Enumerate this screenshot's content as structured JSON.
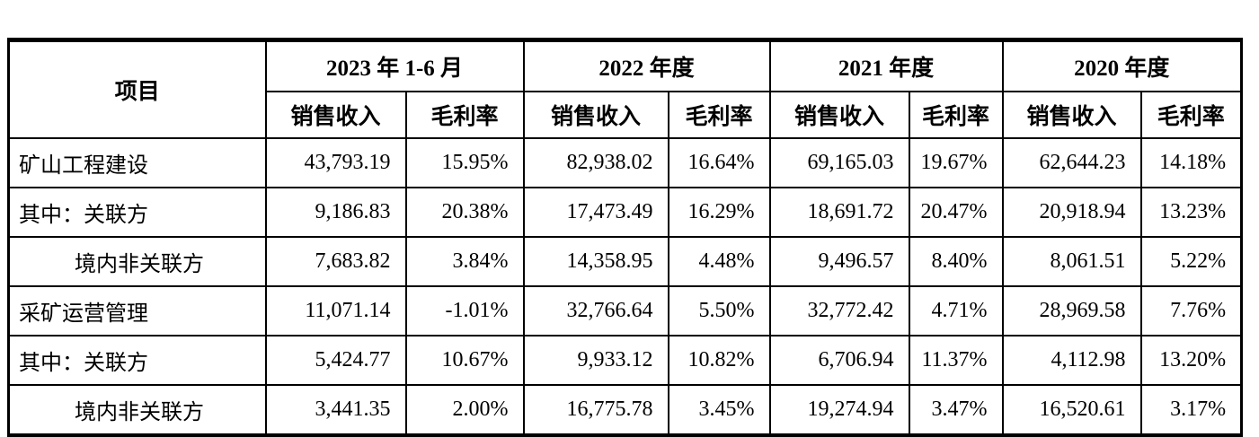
{
  "table": {
    "item_header": "项目",
    "period_groups": [
      {
        "label": "2023 年 1-6 月"
      },
      {
        "label": "2022 年度"
      },
      {
        "label": "2021 年度"
      },
      {
        "label": "2020 年度"
      }
    ],
    "sub_headers": {
      "revenue": "销售收入",
      "margin": "毛利率"
    },
    "rows": [
      {
        "item": "矿山工程建设",
        "indent": false,
        "values": [
          "43,793.19",
          "15.95%",
          "82,938.02",
          "16.64%",
          "69,165.03",
          "19.67%",
          "62,644.23",
          "14.18%"
        ]
      },
      {
        "item": "其中：关联方",
        "indent": false,
        "values": [
          "9,186.83",
          "20.38%",
          "17,473.49",
          "16.29%",
          "18,691.72",
          "20.47%",
          "20,918.94",
          "13.23%"
        ]
      },
      {
        "item": "境内非关联方",
        "indent": true,
        "values": [
          "7,683.82",
          "3.84%",
          "14,358.95",
          "4.48%",
          "9,496.57",
          "8.40%",
          "8,061.51",
          "5.22%"
        ]
      },
      {
        "item": "采矿运营管理",
        "indent": false,
        "values": [
          "11,071.14",
          "-1.01%",
          "32,766.64",
          "5.50%",
          "32,772.42",
          "4.71%",
          "28,969.58",
          "7.76%"
        ]
      },
      {
        "item": "其中：关联方",
        "indent": false,
        "values": [
          "5,424.77",
          "10.67%",
          "9,933.12",
          "10.82%",
          "6,706.94",
          "11.37%",
          "4,112.98",
          "13.20%"
        ]
      },
      {
        "item": "境内非关联方",
        "indent": true,
        "values": [
          "3,441.35",
          "2.00%",
          "16,775.78",
          "3.45%",
          "19,274.94",
          "3.47%",
          "16,520.61",
          "3.17%"
        ]
      }
    ],
    "colors": {
      "text": "#000000",
      "border": "#000000",
      "background": "#ffffff"
    }
  }
}
